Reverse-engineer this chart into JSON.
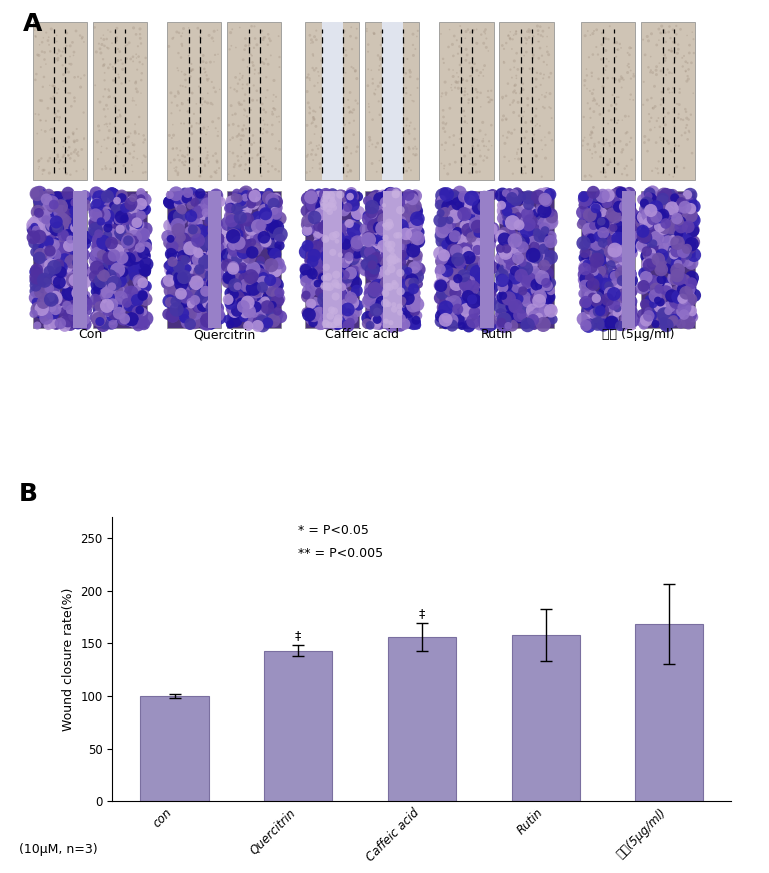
{
  "panel_A_label": "A",
  "panel_B_label": "B",
  "categories": [
    "con",
    "Quercitrin",
    "Caffeic acid",
    "Rutin",
    "편축(5μg/ml)"
  ],
  "values": [
    100,
    143,
    156,
    158,
    168
  ],
  "errors": [
    2,
    5,
    13,
    25,
    38
  ],
  "bar_color": "#9B91C0",
  "bar_edge_color": "#7a6fa0",
  "ylabel": "Wound closure rate(%)",
  "ylim": [
    0,
    270
  ],
  "yticks": [
    0,
    50,
    100,
    150,
    200,
    250
  ],
  "annotation_star1": "* = P<0.05",
  "annotation_star2": "** = P<0.005",
  "note_label": "(10μM, n=3)",
  "top_labels": [
    "Con",
    "Quercitrin",
    "Caffeic acid",
    "Rutin",
    "편축 (5μg/ml)"
  ],
  "background_color": "#ffffff"
}
